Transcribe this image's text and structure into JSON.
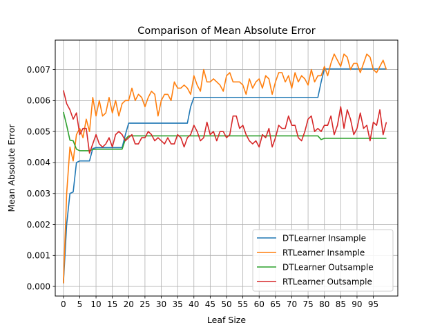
{
  "chart_data": {
    "type": "line",
    "title": "Comparison of Mean Absolute Error",
    "xlabel": "Leaf Size",
    "ylabel": "Mean Absolute Error",
    "xlim": [
      -2.5,
      102.5
    ],
    "ylim": [
      -0.00031,
      0.00795
    ],
    "x_ticks": [
      0,
      5,
      10,
      15,
      20,
      25,
      30,
      35,
      40,
      45,
      50,
      55,
      60,
      65,
      70,
      75,
      80,
      85,
      90,
      95
    ],
    "x_tick_labels": [
      "0",
      "5",
      "10",
      "15",
      "20",
      "25",
      "30",
      "35",
      "40",
      "45",
      "50",
      "55",
      "60",
      "65",
      "70",
      "75",
      "80",
      "85",
      "90",
      "95"
    ],
    "y_ticks": [
      0,
      0.001,
      0.002,
      0.003,
      0.004,
      0.005,
      0.006,
      0.007
    ],
    "y_tick_labels": [
      "0.000",
      "0.001",
      "0.002",
      "0.003",
      "0.004",
      "0.005",
      "0.006",
      "0.007"
    ],
    "grid": true,
    "legend_position": "lower-right",
    "series": [
      {
        "name": "DTLearner Insample",
        "color": "#1f77b4",
        "x": [
          0,
          1,
          2,
          3,
          4,
          5,
          6,
          7,
          8,
          9,
          10,
          18,
          19,
          20,
          38,
          39,
          40,
          78,
          79,
          80,
          99
        ],
        "y": [
          0.0001,
          0.002,
          0.003,
          0.00305,
          0.004,
          0.00405,
          0.00405,
          0.00405,
          0.00405,
          0.00445,
          0.00448,
          0.00448,
          0.0049,
          0.00527,
          0.00527,
          0.0058,
          0.0061,
          0.0061,
          0.0066,
          0.00702,
          0.00702
        ]
      },
      {
        "name": "RTLearner Insample",
        "color": "#ff7f0e",
        "x": [
          0,
          1,
          2,
          3,
          4,
          5,
          6,
          7,
          8,
          9,
          10,
          11,
          12,
          13,
          14,
          15,
          16,
          17,
          18,
          19,
          20,
          21,
          22,
          23,
          24,
          25,
          26,
          27,
          28,
          29,
          30,
          31,
          32,
          33,
          34,
          35,
          36,
          37,
          38,
          39,
          40,
          41,
          42,
          43,
          44,
          45,
          46,
          47,
          48,
          49,
          50,
          51,
          52,
          53,
          54,
          55,
          56,
          57,
          58,
          59,
          60,
          61,
          62,
          63,
          64,
          65,
          66,
          67,
          68,
          69,
          70,
          71,
          72,
          73,
          74,
          75,
          76,
          77,
          78,
          79,
          80,
          81,
          82,
          83,
          84,
          85,
          86,
          87,
          88,
          89,
          90,
          91,
          92,
          93,
          94,
          95,
          96,
          97,
          98,
          99
        ],
        "y": [
          0.0001,
          0.003,
          0.0045,
          0.00405,
          0.0049,
          0.0051,
          0.0048,
          0.0054,
          0.005,
          0.0061,
          0.0055,
          0.006,
          0.0055,
          0.0056,
          0.0061,
          0.0056,
          0.006,
          0.0055,
          0.0059,
          0.006,
          0.006,
          0.0064,
          0.006,
          0.0062,
          0.0061,
          0.0058,
          0.0061,
          0.0063,
          0.0062,
          0.0055,
          0.006,
          0.0062,
          0.0062,
          0.006,
          0.0066,
          0.0064,
          0.0064,
          0.0065,
          0.0064,
          0.0062,
          0.0068,
          0.0065,
          0.0063,
          0.007,
          0.0066,
          0.0066,
          0.0067,
          0.0066,
          0.0065,
          0.0063,
          0.0068,
          0.0069,
          0.0066,
          0.0066,
          0.0066,
          0.0065,
          0.0062,
          0.0067,
          0.0064,
          0.0066,
          0.0067,
          0.0064,
          0.0068,
          0.0067,
          0.0062,
          0.0066,
          0.0069,
          0.0069,
          0.0066,
          0.0068,
          0.0064,
          0.0069,
          0.0066,
          0.0068,
          0.0067,
          0.0065,
          0.007,
          0.0066,
          0.0068,
          0.0068,
          0.0071,
          0.0068,
          0.0072,
          0.0075,
          0.0073,
          0.0071,
          0.0075,
          0.0074,
          0.007,
          0.0072,
          0.0072,
          0.0069,
          0.0072,
          0.0075,
          0.0074,
          0.007,
          0.0069,
          0.0071,
          0.0073,
          0.007
        ]
      },
      {
        "name": "DTLearner Outsample",
        "color": "#2ca02c",
        "x": [
          0,
          1,
          2,
          3,
          4,
          5,
          6,
          7,
          8,
          9,
          10,
          18,
          19,
          20,
          78,
          79,
          80,
          99
        ],
        "y": [
          0.00563,
          0.0052,
          0.00472,
          0.0047,
          0.00443,
          0.00438,
          0.00438,
          0.00438,
          0.00438,
          0.00442,
          0.00443,
          0.00443,
          0.00475,
          0.00486,
          0.00486,
          0.00474,
          0.00478,
          0.00478
        ]
      },
      {
        "name": "RTLearner Outsample",
        "color": "#d62728",
        "x": [
          0,
          1,
          2,
          3,
          4,
          5,
          6,
          7,
          8,
          9,
          10,
          11,
          12,
          13,
          14,
          15,
          16,
          17,
          18,
          19,
          20,
          21,
          22,
          23,
          24,
          25,
          26,
          27,
          28,
          29,
          30,
          31,
          32,
          33,
          34,
          35,
          36,
          37,
          38,
          39,
          40,
          41,
          42,
          43,
          44,
          45,
          46,
          47,
          48,
          49,
          50,
          51,
          52,
          53,
          54,
          55,
          56,
          57,
          58,
          59,
          60,
          61,
          62,
          63,
          64,
          65,
          66,
          67,
          68,
          69,
          70,
          71,
          72,
          73,
          74,
          75,
          76,
          77,
          78,
          79,
          80,
          81,
          82,
          83,
          84,
          85,
          86,
          87,
          88,
          89,
          90,
          91,
          92,
          93,
          94,
          95,
          96,
          97,
          98,
          99
        ],
        "y": [
          0.00633,
          0.0059,
          0.0057,
          0.0054,
          0.0056,
          0.0049,
          0.0051,
          0.0051,
          0.0043,
          0.0046,
          0.0049,
          0.0046,
          0.0045,
          0.0046,
          0.0048,
          0.0045,
          0.0049,
          0.005,
          0.0049,
          0.0047,
          0.0048,
          0.0049,
          0.0046,
          0.0046,
          0.0048,
          0.0048,
          0.005,
          0.0049,
          0.0047,
          0.0048,
          0.0047,
          0.0046,
          0.0048,
          0.0046,
          0.0046,
          0.0049,
          0.0048,
          0.0045,
          0.0048,
          0.0049,
          0.0052,
          0.005,
          0.0047,
          0.0048,
          0.0053,
          0.0049,
          0.005,
          0.0047,
          0.005,
          0.005,
          0.0048,
          0.0049,
          0.0055,
          0.0055,
          0.0051,
          0.0052,
          0.0049,
          0.0047,
          0.0046,
          0.0047,
          0.0045,
          0.0049,
          0.0048,
          0.0051,
          0.0045,
          0.0048,
          0.0052,
          0.0051,
          0.0051,
          0.0055,
          0.0052,
          0.0052,
          0.0048,
          0.0047,
          0.005,
          0.0054,
          0.0055,
          0.005,
          0.0051,
          0.005,
          0.0052,
          0.0052,
          0.0055,
          0.0049,
          0.0052,
          0.0058,
          0.0051,
          0.0057,
          0.0054,
          0.0049,
          0.0051,
          0.0056,
          0.0051,
          0.0052,
          0.0047,
          0.0053,
          0.0052,
          0.0057,
          0.0049,
          0.0053
        ]
      }
    ]
  }
}
